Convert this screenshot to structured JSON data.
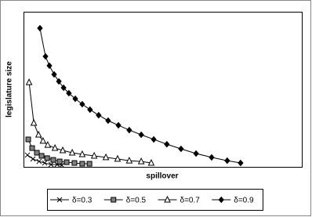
{
  "chart_data": {
    "type": "line",
    "x_label": "spillover",
    "y_label": "legislature size",
    "xlim": [
      0,
      100
    ],
    "ylim": [
      0,
      100
    ],
    "grid": false,
    "legend": "bottom",
    "series": [
      {
        "name": "δ=0.3",
        "color": "#000000",
        "marker": "x",
        "marker_fill": "#000000",
        "x": [
          1.4,
          3.4,
          5.6,
          7.6,
          9.9,
          12.1,
          13.8
        ],
        "values": [
          7.6,
          5.1,
          3.5,
          2.5,
          1.5,
          1.5,
          1.0
        ]
      },
      {
        "name": "δ=0.5",
        "color": "#000000",
        "marker": "square",
        "marker_fill": "#808080",
        "x": [
          1.7,
          3.1,
          4.8,
          6.5,
          8.5,
          10.7,
          13.0,
          15.5,
          18.3,
          21.1,
          23.7
        ],
        "values": [
          17.7,
          12.1,
          9.1,
          7.1,
          5.6,
          4.5,
          3.5,
          3.0,
          2.5,
          2.0,
          2.0
        ]
      },
      {
        "name": "δ=0.7",
        "color": "#000000",
        "marker": "triangle",
        "marker_fill": "#ffffff",
        "x": [
          2.0,
          3.7,
          5.4,
          7.0,
          8.7,
          11.3,
          14.1,
          17.5,
          21.1,
          25.4,
          29.6,
          33.8,
          38.0,
          42.3,
          45.9
        ],
        "values": [
          54.5,
          28.3,
          20.7,
          16.7,
          14.1,
          12.1,
          10.6,
          9.1,
          8.1,
          7.1,
          6.1,
          5.1,
          4.0,
          3.5,
          2.5
        ]
      },
      {
        "name": "δ=0.9",
        "color": "#000000",
        "marker": "diamond",
        "marker_fill": "#000000",
        "x": [
          5.9,
          7.9,
          9.3,
          11.0,
          12.7,
          14.4,
          16.3,
          18.6,
          21.1,
          23.9,
          27.0,
          30.4,
          34.1,
          38.0,
          42.3,
          46.8,
          51.5,
          56.6,
          62.0,
          67.6,
          73.2,
          78.0
        ],
        "values": [
          89.4,
          71.2,
          65.2,
          59.6,
          55.1,
          51.0,
          47.5,
          43.9,
          40.4,
          36.9,
          33.3,
          29.8,
          26.8,
          23.7,
          20.7,
          17.7,
          14.6,
          11.6,
          8.6,
          6.1,
          4.0,
          2.5
        ]
      }
    ]
  }
}
